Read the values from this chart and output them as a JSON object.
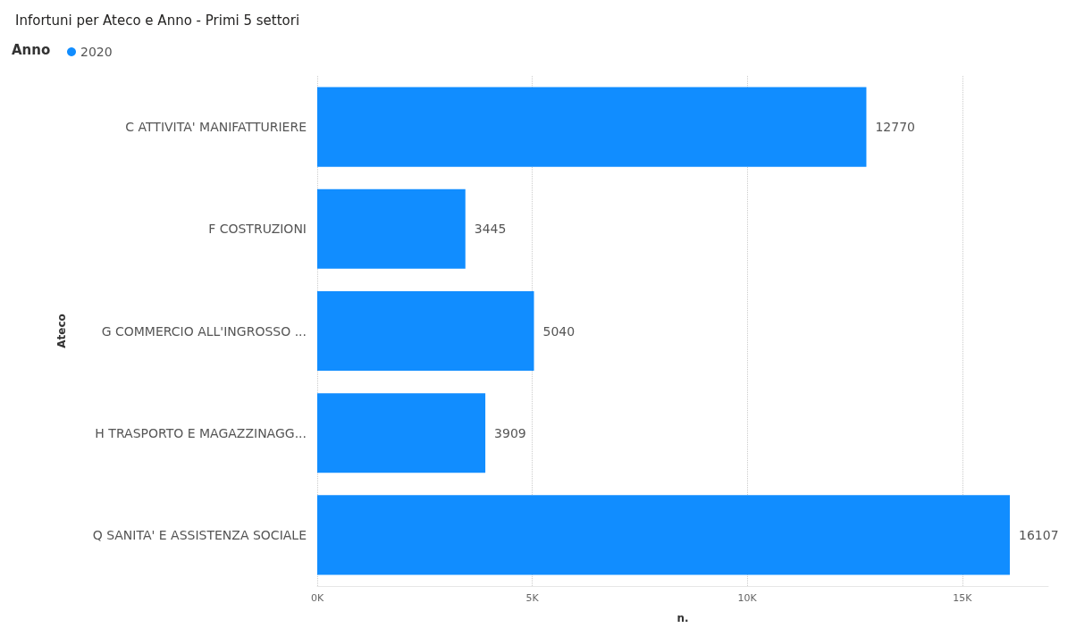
{
  "chart_data": {
    "type": "bar",
    "orientation": "horizontal",
    "title": "Infortuni per Ateco e Anno - Primi 5 settori",
    "legend_title": "Anno",
    "legend": "top left",
    "xlabel": "n.",
    "ylabel": "Ateco",
    "categories": [
      "C ATTIVITA' MANIFATTURIERE",
      "F COSTRUZIONI",
      "G COMMERCIO ALL'INGROSSO ...",
      "H TRASPORTO E MAGAZZINAGG...",
      "Q SANITA' E ASSISTENZA SOCIALE"
    ],
    "series": [
      {
        "name": "2020",
        "color": "#118dff",
        "values": [
          12770,
          3445,
          5040,
          3909,
          16107
        ]
      }
    ],
    "xlim": [
      0,
      17000
    ],
    "xticks": [
      {
        "value": 0,
        "label": "0K"
      },
      {
        "value": 5000,
        "label": "5K"
      },
      {
        "value": 10000,
        "label": "10K"
      },
      {
        "value": 15000,
        "label": "15K"
      }
    ],
    "grid": "x",
    "data_labels": true
  }
}
